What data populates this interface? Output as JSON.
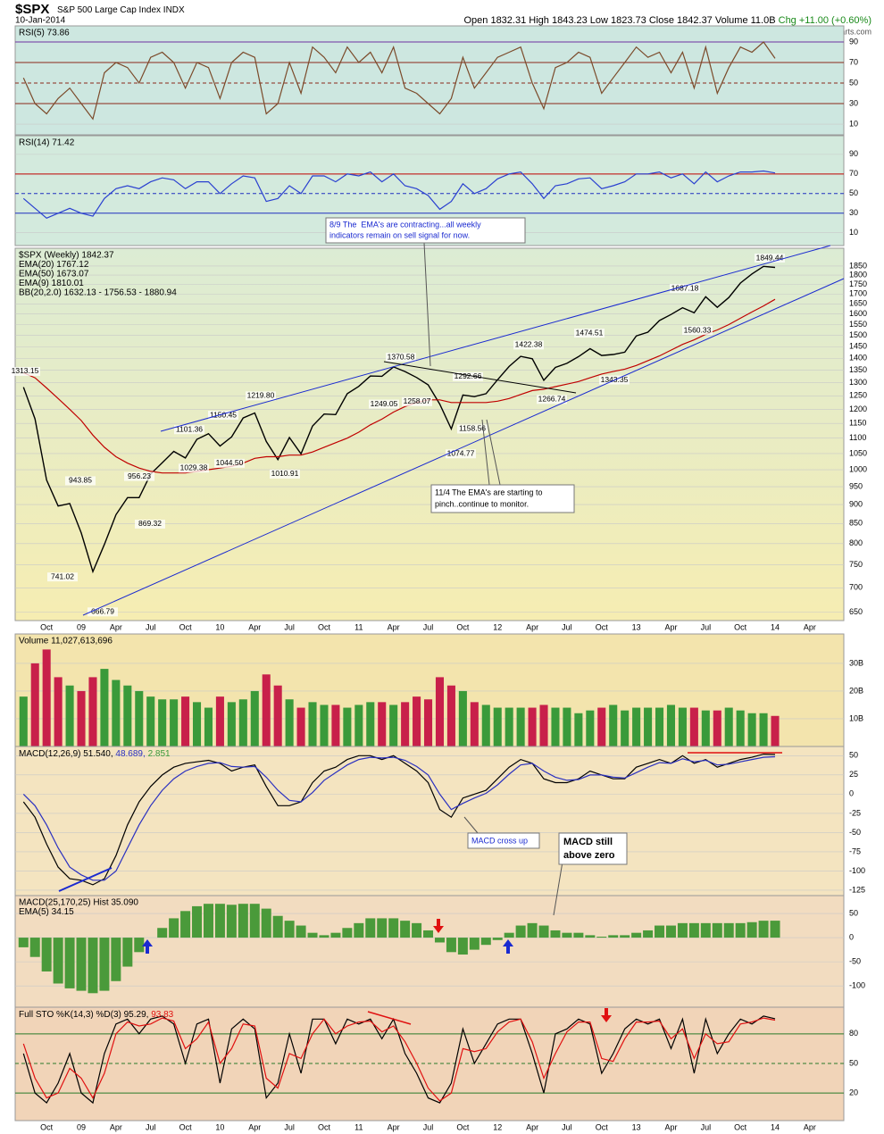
{
  "header": {
    "symbol": "$SPX",
    "name": "S&P 500 Large Cap Index",
    "exchange": "INDX",
    "date": "10-Jan-2014",
    "open": "Open 1832.31",
    "high": "High 1843.23",
    "low": "Low 1823.73",
    "close": "Close 1842.37",
    "volume": "Volume 11.0B",
    "change": "Chg +11.00 (+0.60%)",
    "credit": "©StockCharts.com"
  },
  "notes": [
    [
      "8/9 The  EMA's are contracting...all weekly",
      "indicators remain on sell signal for now."
    ],
    [
      "11/4 The EMA's are starting to",
      "pinch..continue to monitor."
    ],
    [
      "MACD cross up"
    ],
    [
      "MACD still",
      "above zero"
    ]
  ],
  "chart_data": [
    {
      "type": "line",
      "ylim": [
        -0.4,
        105.6
      ],
      "yticks": [
        10,
        30,
        50,
        70,
        90
      ],
      "grid": true,
      "series": [
        {
          "name": "RSI(5) 73.86",
          "color": "#7b4a2a",
          "values": [
            55,
            30,
            20,
            35,
            45,
            30,
            15,
            60,
            70,
            65,
            50,
            75,
            80,
            70,
            45,
            70,
            65,
            35,
            70,
            80,
            75,
            20,
            30,
            70,
            40,
            85,
            75,
            60,
            85,
            70,
            80,
            60,
            85,
            45,
            40,
            30,
            20,
            35,
            75,
            45,
            60,
            75,
            80,
            85,
            50,
            25,
            65,
            70,
            80,
            75,
            40,
            55,
            70,
            85,
            75,
            80,
            60,
            80,
            45,
            85,
            40,
            65,
            85,
            80,
            90,
            74,
            null,
            null,
            null,
            null
          ]
        }
      ]
    },
    {
      "type": "line",
      "ylim": [
        -3,
        109
      ],
      "yticks": [
        10,
        30,
        50,
        70,
        90
      ],
      "grid": true,
      "series": [
        {
          "name": "RSI(14) 71.42",
          "color": "#2a40d0",
          "values": [
            45,
            35,
            25,
            30,
            35,
            30,
            27,
            45,
            55,
            58,
            55,
            62,
            66,
            64,
            55,
            62,
            62,
            50,
            60,
            68,
            66,
            42,
            45,
            58,
            50,
            68,
            68,
            62,
            70,
            68,
            72,
            62,
            70,
            58,
            55,
            48,
            34,
            42,
            60,
            50,
            55,
            65,
            70,
            72,
            60,
            45,
            58,
            60,
            65,
            66,
            55,
            58,
            62,
            70,
            70,
            72,
            66,
            70,
            60,
            72,
            62,
            68,
            72,
            72,
            73,
            71,
            null,
            null,
            null,
            null
          ]
        }
      ]
    },
    {
      "type": "line",
      "log": true,
      "ylim": [
        634,
        1952
      ],
      "yticks": [
        650,
        700,
        750,
        800,
        850,
        900,
        950,
        1000,
        1050,
        1100,
        1150,
        1200,
        1250,
        1300,
        1350,
        1400,
        1450,
        1500,
        1550,
        1600,
        1650,
        1700,
        1750,
        1800,
        1850
      ],
      "grid": true,
      "categories": [
        null,
        null,
        "Oct",
        null,
        null,
        "09",
        null,
        null,
        "Apr",
        null,
        null,
        "Jul",
        null,
        null,
        "Oct",
        null,
        null,
        "10",
        null,
        null,
        "Apr",
        null,
        null,
        "Jul",
        null,
        null,
        "Oct",
        null,
        null,
        "11",
        null,
        null,
        "Apr",
        null,
        null,
        "Jul",
        null,
        null,
        "Oct",
        null,
        null,
        "12",
        null,
        null,
        "Apr",
        null,
        null,
        "Jul",
        null,
        null,
        "Oct",
        null,
        null,
        "13",
        null,
        null,
        "Apr",
        null,
        null,
        "Jul",
        null,
        null,
        "Oct",
        null,
        null,
        "14",
        null,
        null,
        "Apr",
        null
      ],
      "series": [
        {
          "name": "$SPX (Weekly) 1842.37",
          "color": "#000000",
          "values": [
            1283,
            1166,
            969,
            896,
            903,
            826,
            735,
            798,
            873,
            919,
            919,
            987,
            1021,
            1057,
            1036,
            1096,
            1115,
            1074,
            1104,
            1169,
            1187,
            1089,
            1031,
            1102,
            1049,
            1141,
            1183,
            1181,
            1258,
            1286,
            1327,
            1326,
            1364,
            1345,
            1321,
            1292,
            1219,
            1131,
            1253,
            1247,
            1258,
            1312,
            1366,
            1408,
            1398,
            1310,
            1362,
            1379,
            1407,
            1441,
            1412,
            1416,
            1426,
            1498,
            1515,
            1569,
            1598,
            1631,
            1606,
            1686,
            1633,
            1682,
            1757,
            1806,
            1848,
            1842,
            null,
            null,
            null,
            null
          ]
        },
        {
          "name": "EMA(50) 1673.07",
          "color": "#c00000",
          "values": [
            1340,
            1320,
            1280,
            1240,
            1200,
            1160,
            1110,
            1070,
            1040,
            1020,
            1005,
            995,
            990,
            990,
            990,
            995,
            1000,
            1005,
            1010,
            1020,
            1035,
            1040,
            1040,
            1045,
            1045,
            1055,
            1070,
            1085,
            1100,
            1120,
            1145,
            1165,
            1190,
            1210,
            1225,
            1235,
            1235,
            1225,
            1225,
            1225,
            1225,
            1230,
            1240,
            1255,
            1270,
            1275,
            1285,
            1295,
            1305,
            1320,
            1335,
            1345,
            1355,
            1370,
            1390,
            1410,
            1435,
            1460,
            1480,
            1505,
            1525,
            1550,
            1580,
            1610,
            1640,
            1673,
            null,
            null,
            null,
            null
          ]
        }
      ],
      "indicators": [
        {
          "name": "EMA(20) 1767.12",
          "color": "#000080"
        },
        {
          "name": "EMA(9) 1810.01",
          "color": "#e0208a"
        },
        {
          "name": "BB(20,2.0) 1632.13 - 1756.53 - 1880.94",
          "color": "#a0522d"
        }
      ],
      "annotations": [
        1313.15,
        943.85,
        741.02,
        666.79,
        956.23,
        869.32,
        1101.36,
        1029.38,
        1150.45,
        {
          "value": 1044.5,
          "label": "1044.50"
        },
        {
          "value": 1219.8,
          "label": "1219.80"
        },
        1010.91,
        1370.58,
        1249.05,
        1258.07,
        1292.66,
        1074.77,
        1158.56,
        1422.38,
        1266.74,
        1474.51,
        1343.35,
        1687.18,
        1560.33,
        1849.44
      ]
    },
    {
      "type": "bar",
      "ylim": [
        0,
        40600000000
      ],
      "yticks": [
        {
          "value": 10000000000,
          "label": "10B"
        },
        {
          "value": 20000000000,
          "label": "20B"
        },
        {
          "value": 30000000000,
          "label": "30B"
        }
      ],
      "grid": true,
      "up_color": "#3a9a3a",
      "down_color": "#c8204a",
      "series": [
        {
          "name": "Volume 11,027,613,696",
          "color": "#000000",
          "values": [
            18000000000.0,
            30000000000.0,
            35000000000.0,
            25000000000.0,
            22000000000.0,
            20000000000.0,
            25000000000.0,
            28000000000.0,
            24000000000.0,
            22000000000.0,
            20000000000.0,
            18000000000.0,
            17000000000.0,
            17000000000.0,
            18000000000.0,
            16000000000.0,
            14000000000.0,
            18000000000.0,
            16000000000.0,
            17000000000.0,
            20000000000.0,
            26000000000.0,
            22000000000.0,
            17000000000.0,
            14000000000.0,
            16000000000.0,
            15000000000.0,
            15000000000.0,
            14000000000.0,
            15000000000.0,
            16000000000.0,
            16000000000.0,
            15000000000.0,
            16000000000.0,
            18000000000.0,
            17000000000.0,
            25000000000.0,
            22000000000.0,
            20000000000.0,
            16000000000.0,
            15000000000.0,
            14000000000.0,
            14000000000.0,
            14000000000.0,
            14000000000.0,
            15000000000.0,
            14000000000.0,
            14000000000.0,
            12000000000.0,
            13000000000.0,
            14000000000.0,
            15000000000.0,
            13000000000.0,
            14000000000.0,
            14000000000.0,
            14000000000.0,
            15000000000.0,
            14000000000.0,
            14000000000.0,
            13000000000.0,
            13000000000.0,
            14000000000.0,
            13000000000.0,
            12000000000.0,
            12000000000.0,
            11027613696,
            null,
            null,
            null,
            null
          ]
        }
      ]
    },
    {
      "type": "line",
      "ylim": [
        -132,
        62
      ],
      "yticks": [
        -125,
        -100,
        -75,
        -50,
        -25,
        0,
        25,
        50
      ],
      "grid": true,
      "series": [
        {
          "name": "MACD(12,26,9) 51.540,",
          "color": "#000000",
          "values": [
            -10,
            -30,
            -65,
            -95,
            -110,
            -112,
            -118,
            -110,
            -80,
            -40,
            -10,
            10,
            25,
            35,
            40,
            42,
            44,
            40,
            30,
            35,
            38,
            10,
            -15,
            -15,
            -10,
            15,
            30,
            35,
            45,
            50,
            50,
            45,
            50,
            40,
            30,
            15,
            -20,
            -30,
            -5,
            0,
            5,
            20,
            35,
            45,
            40,
            20,
            15,
            15,
            20,
            30,
            25,
            20,
            20,
            35,
            40,
            45,
            40,
            50,
            40,
            45,
            35,
            40,
            45,
            48,
            52,
            51.54,
            null,
            null,
            null,
            null
          ]
        },
        {
          "name": "48.689,",
          "color": "#2a30c0",
          "values": [
            0,
            -15,
            -40,
            -70,
            -95,
            -105,
            -112,
            -112,
            -100,
            -70,
            -40,
            -15,
            5,
            20,
            30,
            36,
            40,
            41,
            36,
            35,
            36,
            22,
            5,
            -8,
            -10,
            2,
            18,
            28,
            38,
            45,
            48,
            47,
            48,
            44,
            36,
            25,
            0,
            -20,
            -12,
            -5,
            1,
            12,
            26,
            38,
            40,
            30,
            22,
            18,
            19,
            25,
            25,
            22,
            21,
            28,
            35,
            41,
            40,
            46,
            42,
            44,
            38,
            39,
            42,
            45,
            48,
            48.689,
            null,
            null,
            null,
            null
          ]
        }
      ],
      "indicators": [
        {
          "name": "2.851",
          "color": "#3a9a3a"
        }
      ]
    },
    {
      "type": "bar",
      "ylim": [
        -144,
        87
      ],
      "yticks": [
        -100,
        -50,
        0,
        50
      ],
      "grid": true,
      "series": [
        {
          "name": "MACD(25,170,25) Hist 35.090",
          "color": "#4a9a3a",
          "values": [
            -20,
            -40,
            -70,
            -95,
            -105,
            -110,
            -115,
            -110,
            -90,
            -60,
            -30,
            0,
            20,
            40,
            55,
            65,
            70,
            70,
            68,
            70,
            70,
            60,
            45,
            35,
            25,
            10,
            5,
            10,
            20,
            30,
            40,
            40,
            40,
            35,
            30,
            15,
            -10,
            -30,
            -35,
            -25,
            -15,
            -5,
            10,
            25,
            30,
            25,
            15,
            10,
            10,
            5,
            2,
            5,
            5,
            10,
            15,
            25,
            25,
            30,
            30,
            30,
            30,
            30,
            30,
            32,
            35,
            35.09,
            null,
            null,
            null,
            null
          ]
        }
      ],
      "indicators": [
        {
          "name": "EMA(5) 34.15",
          "color": "#2a30c0"
        }
      ]
    },
    {
      "type": "line",
      "ylim": [
        -8,
        107
      ],
      "yticks": [
        20,
        50,
        80
      ],
      "grid": true,
      "categories": [
        null,
        null,
        "Oct",
        null,
        null,
        "09",
        null,
        null,
        "Apr",
        null,
        null,
        "Jul",
        null,
        null,
        "Oct",
        null,
        null,
        "10",
        null,
        null,
        "Apr",
        null,
        null,
        "Jul",
        null,
        null,
        "Oct",
        null,
        null,
        "11",
        null,
        null,
        "Apr",
        null,
        null,
        "Jul",
        null,
        null,
        "Oct",
        null,
        null,
        "12",
        null,
        null,
        "Apr",
        null,
        null,
        "Jul",
        null,
        null,
        "Oct",
        null,
        null,
        "13",
        null,
        null,
        "Apr",
        null,
        null,
        "Jul",
        null,
        null,
        "Oct",
        null,
        null,
        "14",
        null,
        null,
        "Apr",
        null
      ],
      "series": [
        {
          "name": "Full STO %K(14,3) %D(3) 95.29,",
          "color": "#000000",
          "values": [
            60,
            20,
            10,
            30,
            60,
            20,
            10,
            60,
            90,
            95,
            80,
            95,
            98,
            90,
            50,
            90,
            95,
            30,
            85,
            95,
            85,
            15,
            30,
            80,
            40,
            95,
            95,
            70,
            95,
            90,
            95,
            75,
            95,
            60,
            40,
            15,
            10,
            30,
            85,
            50,
            70,
            90,
            95,
            95,
            60,
            20,
            80,
            85,
            95,
            90,
            40,
            60,
            85,
            95,
            90,
            95,
            65,
            95,
            40,
            95,
            60,
            80,
            95,
            90,
            98,
            95.29,
            null,
            null,
            null,
            null
          ]
        },
        {
          "name": "93.83",
          "color": "#e01010",
          "values": [
            70,
            35,
            15,
            20,
            45,
            35,
            15,
            40,
            80,
            92,
            88,
            90,
            96,
            93,
            65,
            75,
            92,
            50,
            65,
            90,
            88,
            35,
            25,
            60,
            55,
            80,
            95,
            80,
            88,
            92,
            93,
            82,
            88,
            72,
            50,
            25,
            12,
            20,
            65,
            62,
            65,
            82,
            92,
            95,
            72,
            35,
            60,
            82,
            92,
            92,
            55,
            52,
            75,
            92,
            92,
            93,
            75,
            85,
            55,
            80,
            70,
            72,
            90,
            92,
            96,
            93.83,
            null,
            null,
            null,
            null
          ]
        }
      ]
    }
  ]
}
